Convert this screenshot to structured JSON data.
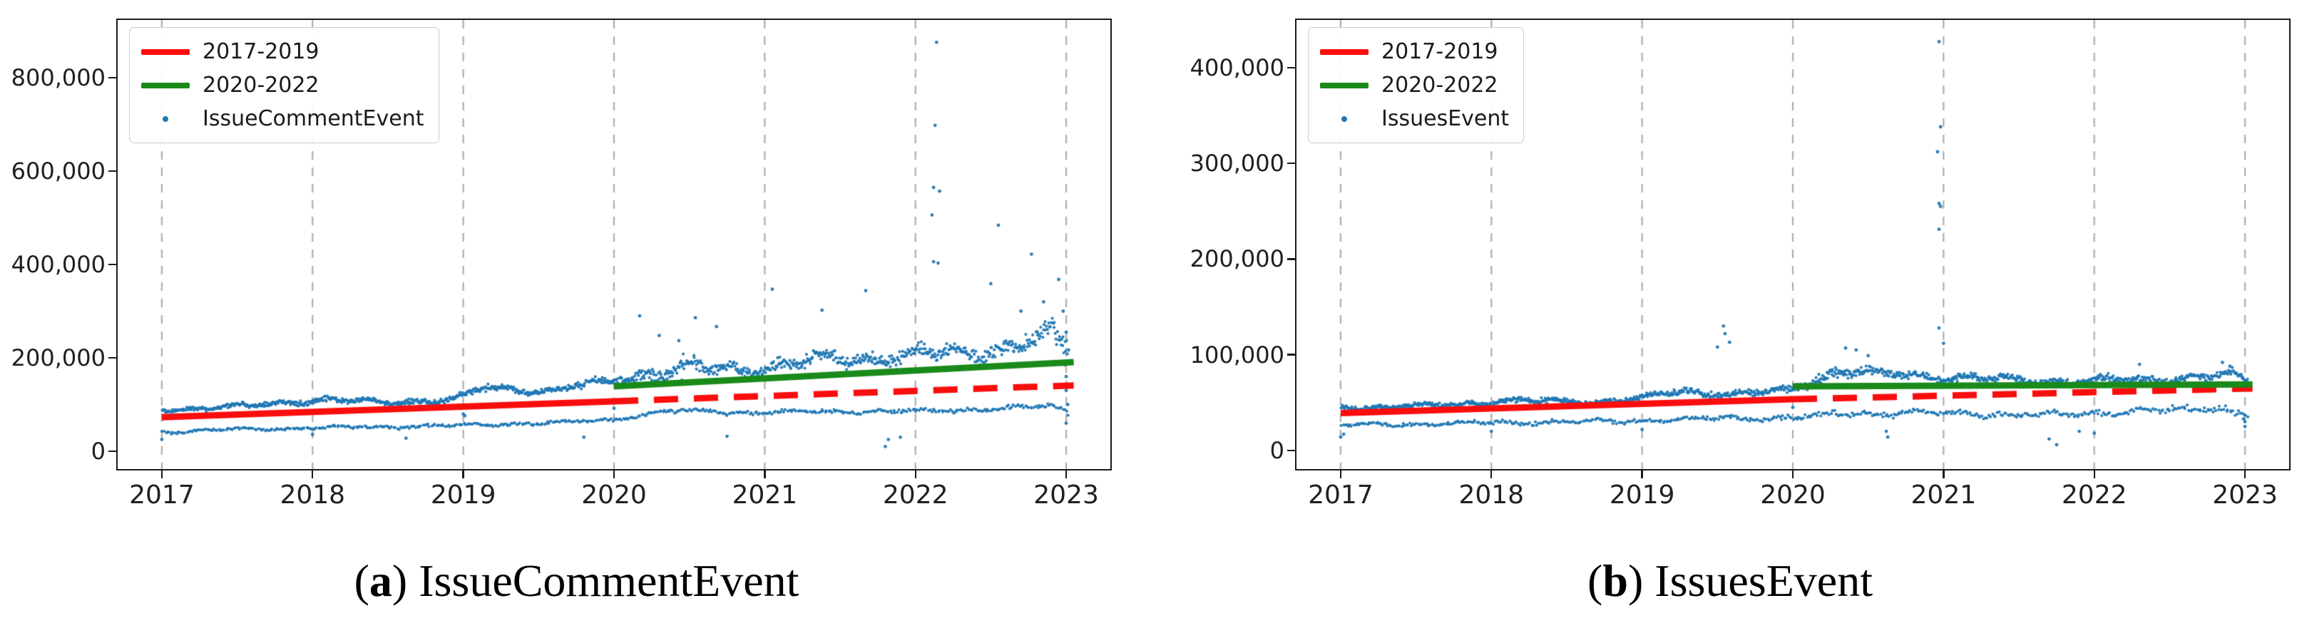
{
  "style": {
    "background": "#ffffff",
    "axis_color": "#1b1b1b",
    "tick_label_color": "#202020",
    "grid_color": "#adadad",
    "scatter_color": "#1f77b4",
    "red": "#fa0d0d",
    "green": "#1a8a1a"
  },
  "chart_data": [
    {
      "type": "scatter",
      "panel": "a",
      "caption_parts": [
        "(",
        "a",
        ")"
      ],
      "caption_title": "IssueCommentEvent",
      "xlabel": "",
      "ylabel": "",
      "xlim": [
        2016.707,
        2023.293
      ],
      "ylim": [
        -38200,
        923800
      ],
      "grid": {
        "axis": "x",
        "style": "dashed",
        "color": "#adadad"
      },
      "x_ticks": [
        {
          "v": 2017,
          "label": "2017"
        },
        {
          "v": 2018,
          "label": "2018"
        },
        {
          "v": 2019,
          "label": "2019"
        },
        {
          "v": 2020,
          "label": "2020"
        },
        {
          "v": 2021,
          "label": "2021"
        },
        {
          "v": 2022,
          "label": "2022"
        },
        {
          "v": 2023,
          "label": "2023"
        }
      ],
      "y_ticks": [
        {
          "v": 0,
          "label": "0"
        },
        {
          "v": 200000,
          "label": "200,000"
        },
        {
          "v": 400000,
          "label": "400,000"
        },
        {
          "v": 600000,
          "label": "600,000"
        },
        {
          "v": 800000,
          "label": "800,000"
        }
      ],
      "legend": {
        "position": "upper-left",
        "entries": [
          {
            "label": "2017-2019",
            "swatch": "line",
            "color": "#fa0d0d"
          },
          {
            "label": "2020-2022",
            "swatch": "line",
            "color": "#1a8a1a"
          },
          {
            "label": "IssueCommentEvent",
            "swatch": "dot",
            "color": "#1f77b4"
          }
        ]
      },
      "trendlines": [
        {
          "name": "fit-2017-2019",
          "color": "#fa0d0d",
          "style": "solid",
          "x": [
            2017.0,
            2020.0
          ],
          "y_thousands": [
            73,
            107
          ]
        },
        {
          "name": "fit-2017-2019-extrapolated",
          "color": "#fa0d0d",
          "style": "dashed",
          "x": [
            2020.0,
            2023.05
          ],
          "y_thousands": [
            107,
            141
          ]
        },
        {
          "name": "fit-2020-2022",
          "color": "#1a8a1a",
          "style": "solid",
          "x": [
            2020.0,
            2023.05
          ],
          "y_thousands": [
            139,
            191
          ]
        }
      ],
      "scatter": {
        "series_name": "IssueCommentEvent",
        "color": "#1f77b4",
        "seed": 12,
        "bands": [
          {
            "name": "weekday-band",
            "points_per_year": 190,
            "anchors_x": [
              2017.0,
              2017.6,
              2018.08,
              2018.45,
              2018.95,
              2019.15,
              2019.55,
              2019.95,
              2020.1,
              2020.35,
              2020.7,
              2021.0,
              2021.5,
              2022.0,
              2022.5,
              2022.92,
              2023.02
            ],
            "mean_thousands": [
              90,
              97,
              112,
              104,
              112,
              136,
              130,
              148,
              158,
              178,
              175,
              183,
              196,
              204,
              216,
              242,
              215
            ],
            "sd_thousands": [
              5,
              5,
              6,
              5,
              6,
              7,
              6,
              7,
              10,
              18,
              15,
              15,
              16,
              17,
              18,
              26,
              22
            ]
          },
          {
            "name": "weekend-band",
            "points_per_year": 88,
            "anchors_x": [
              2017.0,
              2018.0,
              2019.0,
              2019.5,
              2019.95,
              2020.35,
              2021.0,
              2022.0,
              2022.9,
              2023.02
            ],
            "mean_thousands": [
              42,
              50,
              55,
              60,
              66,
              86,
              83,
              85,
              96,
              80
            ],
            "sd_thousands": [
              3,
              3,
              3,
              3,
              3.5,
              4,
              4,
              4,
              5,
              7
            ]
          }
        ],
        "outliers_x_ythousands": [
          [
            2017.0,
            25
          ],
          [
            2018.0,
            36
          ],
          [
            2018.62,
            28
          ],
          [
            2019.0,
            80
          ],
          [
            2019.01,
            76
          ],
          [
            2019.8,
            30
          ],
          [
            2020.0,
            92
          ],
          [
            2020.17,
            290
          ],
          [
            2020.3,
            248
          ],
          [
            2020.43,
            237
          ],
          [
            2020.54,
            286
          ],
          [
            2020.68,
            267
          ],
          [
            2020.45,
            152
          ],
          [
            2020.75,
            32
          ],
          [
            2021.05,
            347
          ],
          [
            2021.38,
            302
          ],
          [
            2021.67,
            344
          ],
          [
            2021.8,
            10
          ],
          [
            2021.82,
            25
          ],
          [
            2021.9,
            30
          ],
          [
            2022.11,
            506
          ],
          [
            2022.12,
            565
          ],
          [
            2022.12,
            406
          ],
          [
            2022.13,
            698
          ],
          [
            2022.14,
            876
          ],
          [
            2022.16,
            557
          ],
          [
            2022.15,
            403
          ],
          [
            2022.5,
            359
          ],
          [
            2022.55,
            484
          ],
          [
            2022.7,
            300
          ],
          [
            2022.77,
            422
          ],
          [
            2022.85,
            320
          ],
          [
            2022.95,
            368
          ],
          [
            2022.98,
            300
          ],
          [
            2023.0,
            255
          ],
          [
            2022.99,
            185
          ],
          [
            2023.0,
            160
          ],
          [
            2023.0,
            130
          ],
          [
            2023.01,
            100
          ],
          [
            2023.0,
            60
          ]
        ]
      }
    },
    {
      "type": "scatter",
      "panel": "b",
      "caption_parts": [
        "(",
        "b",
        ")"
      ],
      "caption_title": "IssuesEvent",
      "xlabel": "",
      "ylabel": "",
      "xlim": [
        2016.707,
        2023.293
      ],
      "ylim": [
        -19400,
        449700
      ],
      "grid": {
        "axis": "x",
        "style": "dashed",
        "color": "#adadad"
      },
      "x_ticks": [
        {
          "v": 2017,
          "label": "2017"
        },
        {
          "v": 2018,
          "label": "2018"
        },
        {
          "v": 2019,
          "label": "2019"
        },
        {
          "v": 2020,
          "label": "2020"
        },
        {
          "v": 2021,
          "label": "2021"
        },
        {
          "v": 2022,
          "label": "2022"
        },
        {
          "v": 2023,
          "label": "2023"
        }
      ],
      "y_ticks": [
        {
          "v": 0,
          "label": "0"
        },
        {
          "v": 100000,
          "label": "100,000"
        },
        {
          "v": 200000,
          "label": "200,000"
        },
        {
          "v": 300000,
          "label": "300,000"
        },
        {
          "v": 400000,
          "label": "400,000"
        }
      ],
      "legend": {
        "position": "upper-left",
        "entries": [
          {
            "label": "2017-2019",
            "swatch": "line",
            "color": "#fa0d0d"
          },
          {
            "label": "2020-2022",
            "swatch": "line",
            "color": "#1a8a1a"
          },
          {
            "label": "IssuesEvent",
            "swatch": "dot",
            "color": "#1f77b4"
          }
        ]
      },
      "trendlines": [
        {
          "name": "fit-2017-2019",
          "color": "#fa0d0d",
          "style": "solid",
          "x": [
            2017.0,
            2020.0
          ],
          "y_thousands": [
            39,
            53.5
          ]
        },
        {
          "name": "fit-2017-2019-extrapolated",
          "color": "#fa0d0d",
          "style": "dashed",
          "x": [
            2020.0,
            2023.05
          ],
          "y_thousands": [
            53.5,
            64.8
          ]
        },
        {
          "name": "fit-2020-2022",
          "color": "#1a8a1a",
          "style": "solid",
          "x": [
            2020.0,
            2023.05
          ],
          "y_thousands": [
            67,
            69
          ]
        }
      ],
      "scatter": {
        "series_name": "IssuesEvent",
        "color": "#1f77b4",
        "seed": 23,
        "bands": [
          {
            "name": "weekday-band",
            "points_per_year": 190,
            "anchors_x": [
              2017.0,
              2017.7,
              2018.08,
              2018.5,
              2019.0,
              2019.25,
              2019.6,
              2019.95,
              2020.3,
              2020.6,
              2021.0,
              2021.45,
              2022.0,
              2022.5,
              2022.9,
              2023.02
            ],
            "mean_thousands": [
              45,
              47,
              52,
              51,
              54,
              62,
              59,
              61,
              84,
              79,
              77,
              73,
              72,
              75,
              79,
              71
            ],
            "sd_thousands": [
              2.5,
              2.5,
              3,
              3,
              3,
              3.5,
              3.5,
              4,
              5,
              4,
              4,
              4,
              4,
              4,
              4,
              5
            ]
          },
          {
            "name": "weekend-band",
            "points_per_year": 88,
            "anchors_x": [
              2017.0,
              2018.0,
              2019.0,
              2019.6,
              2020.0,
              2020.4,
              2021.0,
              2021.5,
              2022.0,
              2022.85,
              2023.02
            ],
            "mean_thousands": [
              26,
              29,
              31,
              34,
              34,
              39,
              39,
              37,
              39,
              45,
              37
            ],
            "sd_thousands": [
              2,
              2,
              2,
              2.2,
              2.5,
              2.8,
              2.8,
              2.8,
              2.8,
              3,
              4
            ]
          }
        ],
        "outliers_x_ythousands": [
          [
            2017.0,
            14
          ],
          [
            2017.02,
            17
          ],
          [
            2018.0,
            20
          ],
          [
            2019.0,
            22
          ],
          [
            2019.5,
            108
          ],
          [
            2019.54,
            130
          ],
          [
            2019.55,
            122
          ],
          [
            2019.58,
            113
          ],
          [
            2020.0,
            45
          ],
          [
            2020.35,
            107
          ],
          [
            2020.42,
            105
          ],
          [
            2020.5,
            99
          ],
          [
            2020.62,
            20
          ],
          [
            2020.63,
            14
          ],
          [
            2020.96,
            312
          ],
          [
            2020.97,
            427
          ],
          [
            2020.97,
            258
          ],
          [
            2020.97,
            231
          ],
          [
            2020.98,
            338
          ],
          [
            2020.98,
            255
          ],
          [
            2020.97,
            128
          ],
          [
            2021.0,
            112
          ],
          [
            2021.7,
            12
          ],
          [
            2021.75,
            6
          ],
          [
            2021.9,
            20
          ],
          [
            2022.0,
            18
          ],
          [
            2022.3,
            90
          ],
          [
            2022.85,
            92
          ],
          [
            2022.9,
            88
          ],
          [
            2022.99,
            33
          ],
          [
            2023.0,
            30
          ],
          [
            2023.0,
            25
          ]
        ]
      }
    }
  ]
}
